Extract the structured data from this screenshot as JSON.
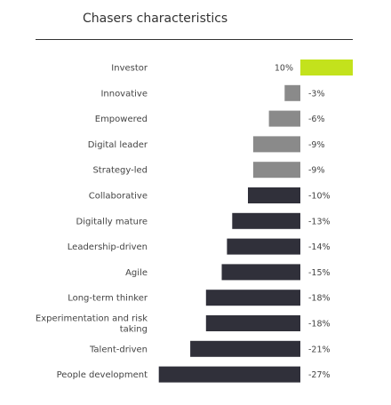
{
  "chart_data": {
    "type": "bar",
    "orientation": "horizontal",
    "title": "Chasers characteristics",
    "categories": [
      "Investor",
      "Innovative",
      "Empowered",
      "Digital leader",
      "Strategy-led",
      "Collaborative",
      "Digitally mature",
      "Leadership-driven",
      "Agile",
      "Long-term thinker",
      [
        "Experimentation and risk",
        "taking"
      ],
      "Talent-driven",
      "People development"
    ],
    "values": [
      10,
      -3,
      -6,
      -9,
      -9,
      -10,
      -13,
      -14,
      -15,
      -18,
      -18,
      -21,
      -27
    ],
    "value_labels": [
      "10%",
      "-3%",
      "-6%",
      "-9%",
      "-9%",
      "-10%",
      "-13%",
      "-14%",
      "-15%",
      "-18%",
      "-18%",
      "-21%",
      "-27%"
    ],
    "colors": {
      "positive": "#c3e21c",
      "small_negative": "#8a8a8a",
      "large_negative": "#30303a"
    },
    "grid": false
  }
}
